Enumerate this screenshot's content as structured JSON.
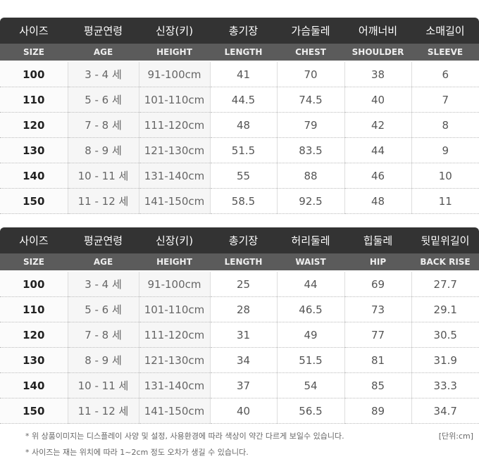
{
  "table1": {
    "headers_kr": [
      "사이즈",
      "평균연령",
      "신장(키)",
      "총기장",
      "가슴둘레",
      "어깨너비",
      "소매길이"
    ],
    "headers_en": [
      "SIZE",
      "AGE",
      "HEIGHT",
      "LENGTH",
      "CHEST",
      "SHOULDER",
      "SLEEVE"
    ],
    "rows": [
      [
        "100",
        "3 - 4 세",
        "91-100cm",
        "41",
        "70",
        "38",
        "6"
      ],
      [
        "110",
        "5 - 6 세",
        "101-110cm",
        "44.5",
        "74.5",
        "40",
        "7"
      ],
      [
        "120",
        "7 - 8 세",
        "111-120cm",
        "48",
        "79",
        "42",
        "8"
      ],
      [
        "130",
        "8 - 9 세",
        "121-130cm",
        "51.5",
        "83.5",
        "44",
        "9"
      ],
      [
        "140",
        "10 - 11 세",
        "131-140cm",
        "55",
        "88",
        "46",
        "10"
      ],
      [
        "150",
        "11 - 12 세",
        "141-150cm",
        "58.5",
        "92.5",
        "48",
        "11"
      ]
    ]
  },
  "table2": {
    "headers_kr": [
      "사이즈",
      "평균연령",
      "신장(키)",
      "총기장",
      "허리둘레",
      "힙둘레",
      "뒷밑위길이"
    ],
    "headers_en": [
      "SIZE",
      "AGE",
      "HEIGHT",
      "LENGTH",
      "WAIST",
      "HIP",
      "BACK RISE"
    ],
    "rows": [
      [
        "100",
        "3 - 4 세",
        "91-100cm",
        "25",
        "44",
        "69",
        "27.7"
      ],
      [
        "110",
        "5 - 6 세",
        "101-110cm",
        "28",
        "46.5",
        "73",
        "29.1"
      ],
      [
        "120",
        "7 - 8 세",
        "111-120cm",
        "31",
        "49",
        "77",
        "30.5"
      ],
      [
        "130",
        "8 - 9 세",
        "121-130cm",
        "34",
        "51.5",
        "81",
        "31.9"
      ],
      [
        "140",
        "10 - 11 세",
        "131-140cm",
        "37",
        "54",
        "85",
        "33.3"
      ],
      [
        "150",
        "11 - 12 세",
        "141-150cm",
        "40",
        "56.5",
        "89",
        "34.7"
      ]
    ]
  },
  "notes": [
    "* 위 상품이미지는 디스플레이 사양 및 설정, 사용환경에 따라 색상이 약간 다르게 보일수 있습니다.",
    "* 사이즈는 재는 위치에 따라 1~2cm 정도 오차가 생길 수 있습니다."
  ],
  "unit": "[단위:cm]"
}
